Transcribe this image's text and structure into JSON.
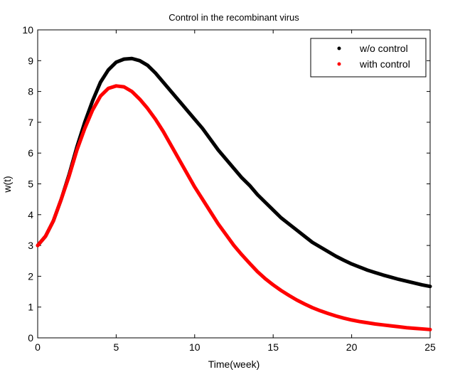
{
  "chart_data": {
    "type": "line",
    "title": "Control in the recombinant virus",
    "xlabel": "Time(week)",
    "ylabel": "w(t)",
    "xlim": [
      0,
      25
    ],
    "ylim": [
      0,
      10
    ],
    "xticks": [
      0,
      5,
      10,
      15,
      20,
      25
    ],
    "yticks": [
      0,
      1,
      2,
      3,
      4,
      5,
      6,
      7,
      8,
      9,
      10
    ],
    "legend_position": "top-right",
    "grid": false,
    "series": [
      {
        "name": "w/o control",
        "color": "#000000",
        "x": [
          0,
          0.5,
          1,
          1.5,
          2,
          2.5,
          3,
          3.5,
          4,
          4.5,
          5,
          5.5,
          6,
          6.5,
          7,
          7.5,
          8,
          8.5,
          9,
          9.5,
          10,
          10.5,
          11,
          11.5,
          12,
          12.5,
          13,
          13.5,
          14,
          14.5,
          15,
          15.5,
          16,
          16.5,
          17,
          17.5,
          18,
          18.5,
          19,
          19.5,
          20,
          20.5,
          21,
          21.5,
          22,
          22.5,
          23,
          23.5,
          24,
          24.5,
          25
        ],
        "y": [
          3.0,
          3.3,
          3.8,
          4.5,
          5.3,
          6.2,
          7.0,
          7.7,
          8.3,
          8.7,
          8.95,
          9.05,
          9.07,
          9.0,
          8.85,
          8.6,
          8.3,
          8.0,
          7.7,
          7.4,
          7.1,
          6.8,
          6.45,
          6.1,
          5.8,
          5.5,
          5.2,
          4.95,
          4.65,
          4.4,
          4.15,
          3.9,
          3.7,
          3.5,
          3.3,
          3.1,
          2.95,
          2.8,
          2.65,
          2.52,
          2.4,
          2.3,
          2.2,
          2.12,
          2.04,
          1.97,
          1.9,
          1.84,
          1.78,
          1.72,
          1.67
        ]
      },
      {
        "name": "with control",
        "color": "#ff0000",
        "x": [
          0,
          0.5,
          1,
          1.5,
          2,
          2.5,
          3,
          3.5,
          4,
          4.5,
          5,
          5.5,
          6,
          6.5,
          7,
          7.5,
          8,
          8.5,
          9,
          9.5,
          10,
          10.5,
          11,
          11.5,
          12,
          12.5,
          13,
          13.5,
          14,
          14.5,
          15,
          15.5,
          16,
          16.5,
          17,
          17.5,
          18,
          18.5,
          19,
          19.5,
          20,
          20.5,
          21,
          21.5,
          22,
          22.5,
          23,
          23.5,
          24,
          24.5,
          25
        ],
        "y": [
          3.0,
          3.3,
          3.8,
          4.5,
          5.25,
          6.1,
          6.8,
          7.4,
          7.85,
          8.1,
          8.18,
          8.15,
          8.0,
          7.75,
          7.45,
          7.1,
          6.7,
          6.25,
          5.8,
          5.35,
          4.9,
          4.5,
          4.1,
          3.7,
          3.35,
          3.0,
          2.7,
          2.42,
          2.15,
          1.92,
          1.72,
          1.54,
          1.38,
          1.23,
          1.1,
          0.98,
          0.88,
          0.79,
          0.71,
          0.64,
          0.58,
          0.53,
          0.49,
          0.45,
          0.42,
          0.39,
          0.36,
          0.33,
          0.31,
          0.29,
          0.27
        ]
      }
    ]
  }
}
